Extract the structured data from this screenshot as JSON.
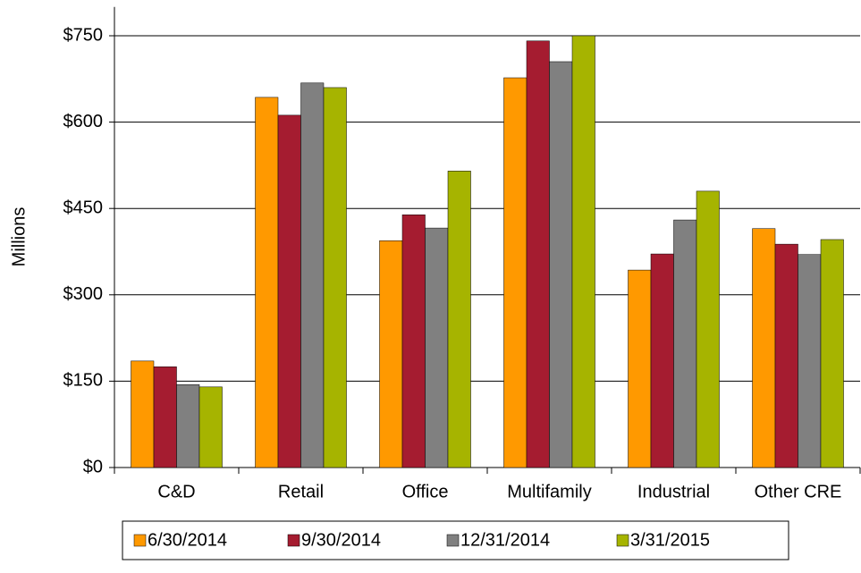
{
  "chart_data": {
    "type": "bar",
    "y_label": "Millions",
    "categories": [
      "C&D",
      "Retail",
      "Office",
      "Multifamily",
      "Industrial",
      "Other CRE"
    ],
    "series": [
      {
        "name": "6/30/2014",
        "color": "#FF9900",
        "values": [
          185,
          643,
          394,
          677,
          343,
          415
        ]
      },
      {
        "name": "9/30/2014",
        "color": "#A51C30",
        "values": [
          175,
          612,
          439,
          741,
          371,
          388
        ]
      },
      {
        "name": "12/31/2014",
        "color": "#808080",
        "values": [
          144,
          668,
          416,
          705,
          430,
          370
        ]
      },
      {
        "name": "3/31/2015",
        "color": "#A6B400",
        "values": [
          140,
          660,
          515,
          750,
          480,
          396
        ]
      }
    ],
    "ylim": [
      0,
      800
    ],
    "yticks": [
      {
        "value": 0,
        "label": "$0"
      },
      {
        "value": 150,
        "label": "$150"
      },
      {
        "value": 300,
        "label": "$300"
      },
      {
        "value": 450,
        "label": "$450"
      },
      {
        "value": 600,
        "label": "$600"
      },
      {
        "value": 750,
        "label": "$750"
      }
    ],
    "grid": true
  }
}
